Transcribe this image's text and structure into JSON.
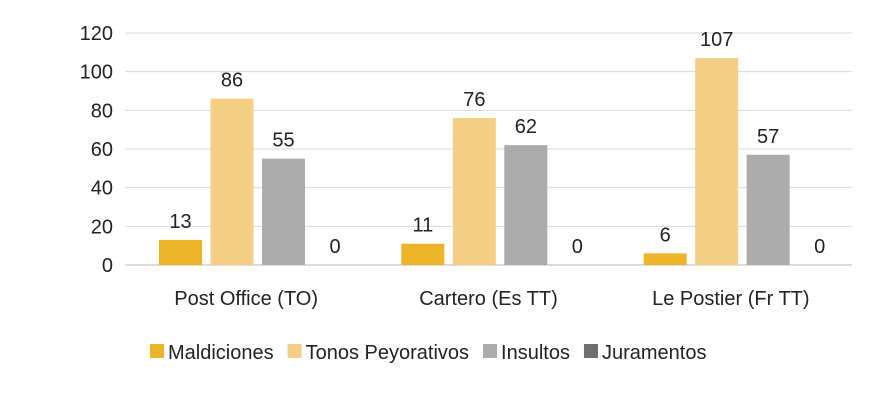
{
  "chart_data": {
    "type": "bar",
    "title": "",
    "xlabel": "",
    "ylabel": "",
    "ylim": [
      0,
      120
    ],
    "yticks": [
      0,
      20,
      40,
      60,
      80,
      100,
      120
    ],
    "grid": true,
    "legend_position": "bottom",
    "categories": [
      "Post Office (TO)",
      "Cartero (Es TT)",
      "Le Postier (Fr TT)"
    ],
    "series": [
      {
        "name": "Maldiciones",
        "color": "#EDB42A",
        "values": [
          13,
          11,
          6
        ]
      },
      {
        "name": "Tonos Peyorativos",
        "color": "#F4CE83",
        "values": [
          86,
          76,
          107
        ]
      },
      {
        "name": "Insultos",
        "color": "#ABABAB",
        "values": [
          55,
          62,
          57
        ]
      },
      {
        "name": "Juramentos",
        "color": "#6E6E70",
        "values": [
          0,
          0,
          0
        ]
      }
    ]
  }
}
